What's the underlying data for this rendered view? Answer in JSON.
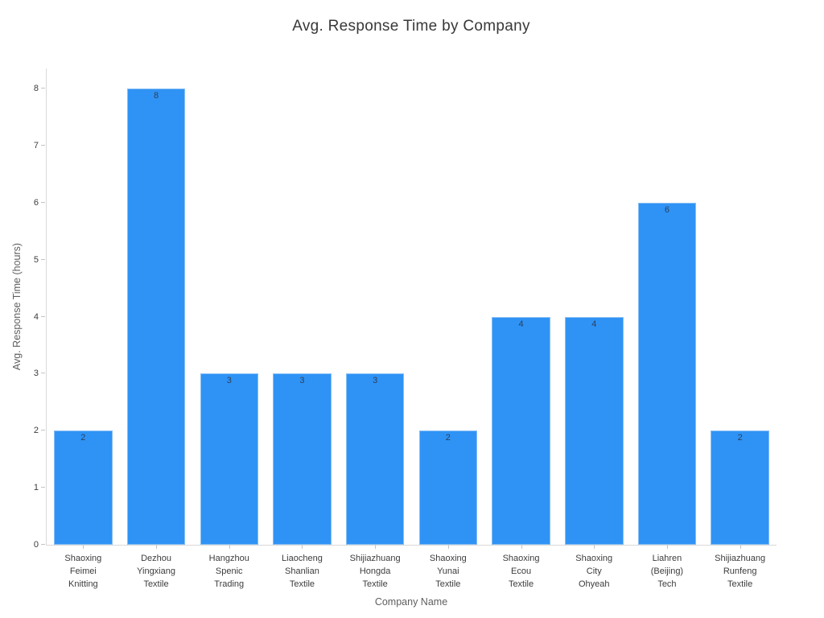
{
  "chart_data": {
    "type": "bar",
    "title": "Avg. Response Time by Company",
    "xlabel": "Company Name",
    "ylabel": "Avg. Response Time (hours)",
    "categories": [
      "Shaoxing\nFeimei\nKnitting",
      "Dezhou\nYingxiang\nTextile",
      "Hangzhou\nSpenic\nTrading",
      "Liaocheng\nShanlian\nTextile",
      "Shijiazhuang\nHongda\nTextile",
      "Shaoxing\nYunai\nTextile",
      "Shaoxing\nEcou\nTextile",
      "Shaoxing\nCity\nOhyeah",
      "Liahren\n(Beijing)\nTech",
      "Shijiazhuang\nRunfeng\nTextile"
    ],
    "values": [
      2,
      8,
      3,
      3,
      3,
      2,
      4,
      4,
      6,
      2
    ],
    "value_labels": [
      "2",
      "8",
      "3",
      "3",
      "3",
      "2",
      "4",
      "4",
      "6",
      "2"
    ],
    "y_ticks": [
      0,
      1,
      2,
      3,
      4,
      5,
      6,
      7,
      8
    ],
    "ylim": [
      0,
      8
    ],
    "grid": false,
    "legend": false,
    "show_value_labels": true,
    "colors": {
      "bar_fill": "#2F93F5",
      "bar_border": "#87BEF5",
      "value_label": "#2A3F5F",
      "tick_label": "#3C3C3C",
      "axis_line": "#D9D9D9",
      "tick_mark": "#C4C4C4",
      "axis_title": "#5F5F5F",
      "title": "#383838",
      "background": "#FFFFFF"
    }
  }
}
